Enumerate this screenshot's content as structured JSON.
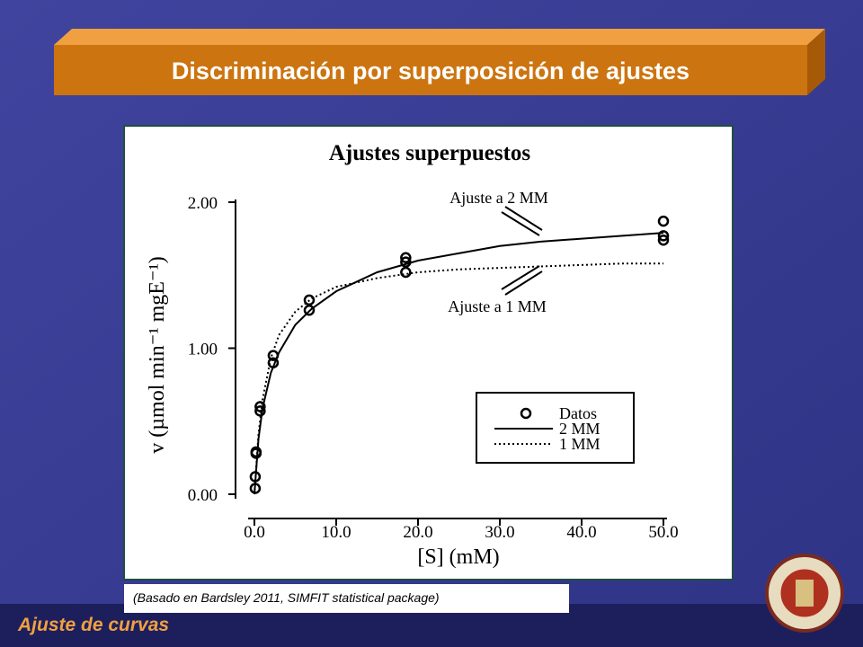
{
  "slide": {
    "title": "Discriminación por superposición de ajustes",
    "caption": "(Basado en Bardsley 2011, SIMFIT statistical package)",
    "footer": "Ajuste de curvas"
  },
  "chart_data": {
    "type": "scatter",
    "title": "Ajustes superpuestos",
    "x_label": "[S] (mM)",
    "y_label": "v (µmol min⁻¹ mgE⁻¹)",
    "xlim": [
      0,
      50
    ],
    "ylim": [
      0,
      2
    ],
    "xticks": [
      {
        "value": 0,
        "label": "0.0"
      },
      {
        "value": 10,
        "label": "10.0"
      },
      {
        "value": 20,
        "label": "20.0"
      },
      {
        "value": 30,
        "label": "30.0"
      },
      {
        "value": 40,
        "label": "40.0"
      },
      {
        "value": 50,
        "label": "50.0"
      }
    ],
    "yticks": [
      {
        "value": 0,
        "label": "0.00"
      },
      {
        "value": 1,
        "label": "1.00"
      },
      {
        "value": 2,
        "label": "2.00"
      }
    ],
    "series": [
      {
        "name": "Datos",
        "style": "points",
        "color": "#000000",
        "x": [
          0.1,
          0.1,
          0.2,
          0.2,
          0.7,
          0.7,
          2.3,
          2.3,
          6.7,
          6.7,
          18.5,
          18.5,
          18.5,
          50,
          50,
          50
        ],
        "values": [
          0.04,
          0.12,
          0.28,
          0.29,
          0.6,
          0.57,
          0.95,
          0.9,
          1.33,
          1.26,
          1.62,
          1.59,
          1.52,
          1.87,
          1.77,
          1.74
        ]
      },
      {
        "name": "2 MM",
        "style": "solid",
        "color": "#000000",
        "x": [
          0,
          0.5,
          1,
          2,
          3,
          5,
          7,
          10,
          15,
          20,
          25,
          30,
          35,
          40,
          45,
          50
        ],
        "values": [
          0,
          0.38,
          0.59,
          0.83,
          0.97,
          1.16,
          1.27,
          1.39,
          1.52,
          1.6,
          1.65,
          1.7,
          1.73,
          1.75,
          1.77,
          1.79
        ]
      },
      {
        "name": "1 MM",
        "style": "dotted",
        "color": "#000000",
        "x": [
          0,
          0.5,
          1,
          2,
          3,
          5,
          7,
          10,
          15,
          20,
          25,
          30,
          35,
          40,
          45,
          50
        ],
        "values": [
          0,
          0.41,
          0.65,
          0.93,
          1.09,
          1.25,
          1.34,
          1.42,
          1.48,
          1.52,
          1.54,
          1.55,
          1.56,
          1.57,
          1.58,
          1.58
        ]
      }
    ],
    "annotations": [
      "Ajuste a 2 MM",
      "Ajuste a 1 MM"
    ]
  }
}
